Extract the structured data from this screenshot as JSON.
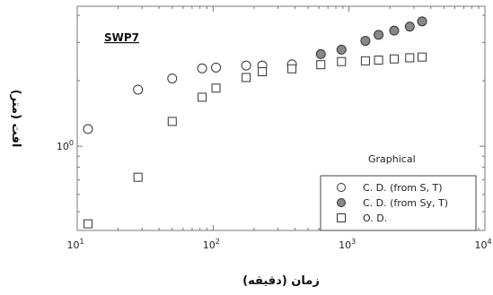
{
  "chart_data": {
    "type": "scatter",
    "xlabel": "زمان (دقیقه)",
    "ylabel": "افت (متر)",
    "xscale": "log",
    "yscale": "log",
    "xlim": [
      10,
      10000
    ],
    "ylim": [
      0.41,
      4.4
    ],
    "x_ticks": [
      {
        "value": 10,
        "base": "10",
        "exp": "1"
      },
      {
        "value": 100,
        "base": "10",
        "exp": "2"
      },
      {
        "value": 1000,
        "base": "10",
        "exp": "3"
      },
      {
        "value": 10000,
        "base": "10",
        "exp": "4"
      }
    ],
    "y_ticks": [
      {
        "value": 1,
        "base": "10",
        "exp": "0"
      }
    ],
    "grid": false,
    "legend_position": "bottom-right",
    "annotations": {
      "well_label": "SWP7",
      "method_label": "Graphical"
    },
    "series": [
      {
        "name": "C. D. (from S, T)",
        "marker": "circle-open",
        "x": [
          12,
          28,
          50,
          83,
          105,
          175,
          230,
          380
        ],
        "y": [
          1.2,
          1.82,
          2.05,
          2.28,
          2.3,
          2.35,
          2.35,
          2.38
        ]
      },
      {
        "name": "C. D. (from Sy, T)",
        "marker": "circle-filled",
        "x": [
          620,
          880,
          1320,
          1650,
          2150,
          2800,
          3450
        ],
        "y": [
          2.65,
          2.78,
          3.05,
          3.25,
          3.4,
          3.55,
          3.75
        ]
      },
      {
        "name": "O. D.",
        "marker": "square-open",
        "x": [
          12,
          28,
          50,
          83,
          105,
          175,
          230,
          380,
          620,
          880,
          1320,
          1650,
          2150,
          2800,
          3450
        ],
        "y": [
          0.44,
          0.72,
          1.3,
          1.68,
          1.85,
          2.07,
          2.2,
          2.27,
          2.37,
          2.45,
          2.47,
          2.49,
          2.52,
          2.55,
          2.57
        ]
      }
    ],
    "colors": {
      "frame": "#777777",
      "marker_stroke": "#333333",
      "filled_marker": "#888888"
    }
  }
}
